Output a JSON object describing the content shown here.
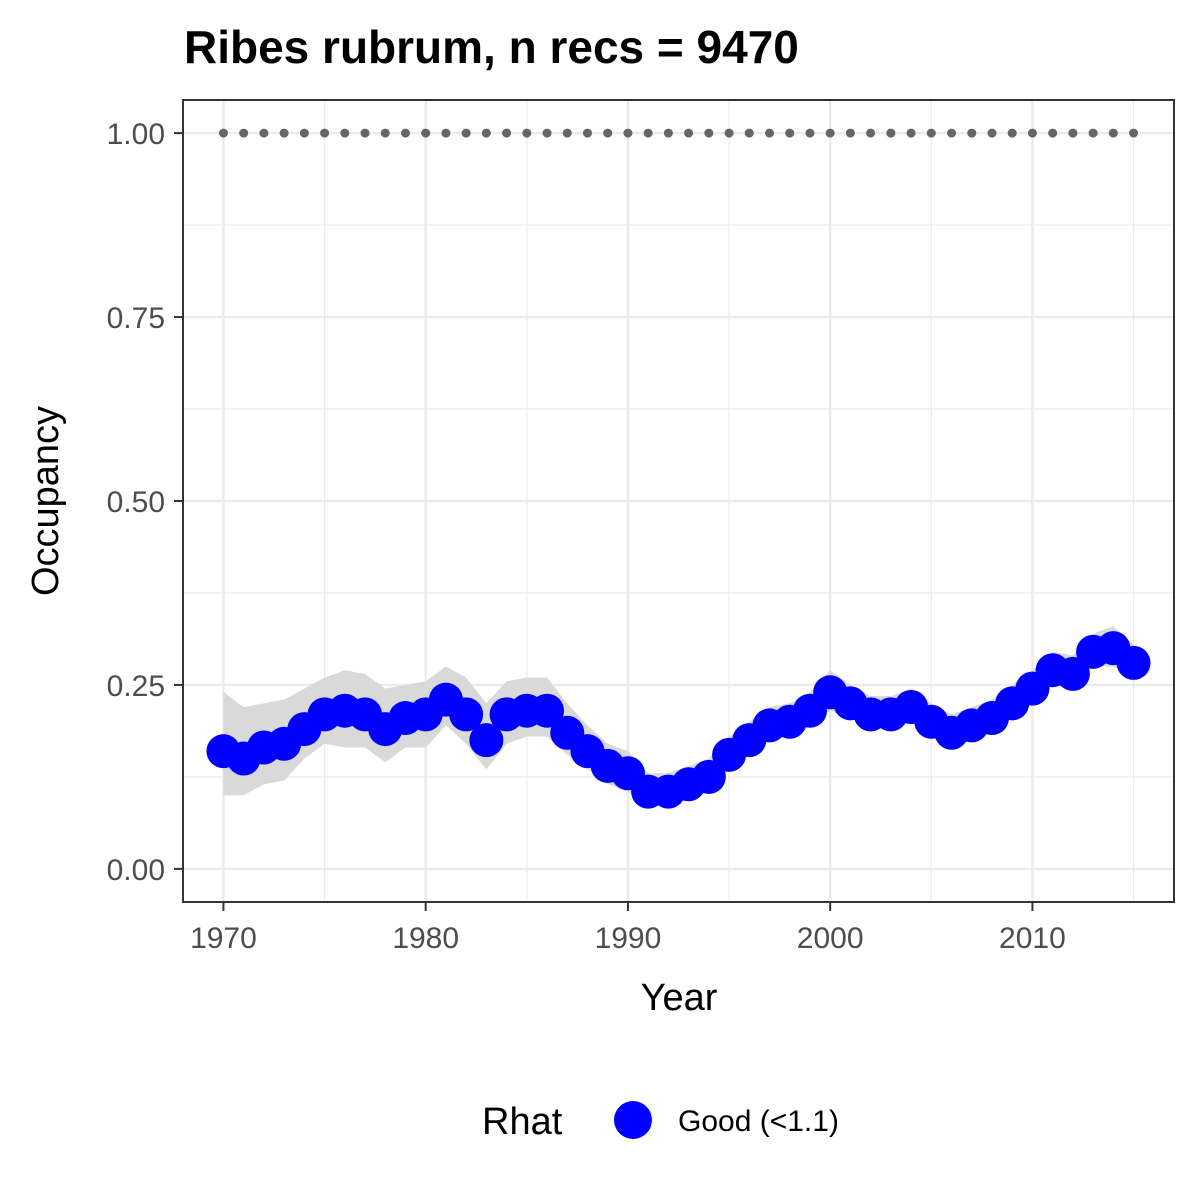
{
  "chart_data": {
    "type": "line",
    "title": "Ribes rubrum, n recs = 9470",
    "xlabel": "Year",
    "ylabel": "Occupancy",
    "xlim": [
      1968,
      2017
    ],
    "ylim": [
      -0.045,
      1.045
    ],
    "x_ticks": [
      1970,
      1980,
      1990,
      2000,
      2010
    ],
    "x_tick_labels": [
      "1970",
      "1980",
      "1990",
      "2000",
      "2010"
    ],
    "y_ticks": [
      0,
      0.25,
      0.5,
      0.75,
      1
    ],
    "y_tick_labels": [
      "0.00",
      "0.25",
      "0.50",
      "0.75",
      "1.00"
    ],
    "grid": true,
    "legend": {
      "title": "Rhat",
      "position": "bottom",
      "entries": [
        {
          "label": "Good (<1.1)",
          "color": "#0000ff"
        }
      ]
    },
    "colors": {
      "points": "#0000ff",
      "ribbon": "#d9d9d9",
      "reference_dots": "#666666",
      "panel_border": "#333333",
      "grid": "#ebebeb"
    },
    "x": [
      1970,
      1971,
      1972,
      1973,
      1974,
      1975,
      1976,
      1977,
      1978,
      1979,
      1980,
      1981,
      1982,
      1983,
      1984,
      1985,
      1986,
      1987,
      1988,
      1989,
      1990,
      1991,
      1992,
      1993,
      1994,
      1995,
      1996,
      1997,
      1998,
      1999,
      2000,
      2001,
      2002,
      2003,
      2004,
      2005,
      2006,
      2007,
      2008,
      2009,
      2010,
      2011,
      2012,
      2013,
      2014,
      2015
    ],
    "series": [
      {
        "values": [
          0.16,
          0.15,
          0.165,
          0.17,
          0.19,
          0.21,
          0.215,
          0.21,
          0.19,
          0.205,
          0.21,
          0.23,
          0.21,
          0.175,
          0.21,
          0.215,
          0.215,
          0.185,
          0.16,
          0.14,
          0.13,
          0.105,
          0.105,
          0.115,
          0.125,
          0.155,
          0.175,
          0.195,
          0.2,
          0.215,
          0.24,
          0.225,
          0.21,
          0.21,
          0.22,
          0.2,
          0.185,
          0.195,
          0.205,
          0.225,
          0.245,
          0.27,
          0.265,
          0.295,
          0.3,
          0.28
        ],
        "lower": [
          0.1,
          0.1,
          0.115,
          0.12,
          0.15,
          0.17,
          0.165,
          0.165,
          0.145,
          0.165,
          0.165,
          0.195,
          0.17,
          0.135,
          0.17,
          0.18,
          0.18,
          0.155,
          0.135,
          0.115,
          0.105,
          0.085,
          0.085,
          0.095,
          0.105,
          0.135,
          0.155,
          0.175,
          0.18,
          0.195,
          0.215,
          0.205,
          0.19,
          0.19,
          0.2,
          0.18,
          0.165,
          0.175,
          0.185,
          0.205,
          0.225,
          0.25,
          0.245,
          0.275,
          0.275,
          0.26
        ],
        "upper": [
          0.24,
          0.22,
          0.225,
          0.23,
          0.245,
          0.26,
          0.27,
          0.265,
          0.245,
          0.25,
          0.255,
          0.275,
          0.26,
          0.225,
          0.255,
          0.26,
          0.26,
          0.225,
          0.195,
          0.17,
          0.16,
          0.13,
          0.13,
          0.14,
          0.15,
          0.18,
          0.2,
          0.22,
          0.225,
          0.24,
          0.27,
          0.25,
          0.235,
          0.235,
          0.245,
          0.225,
          0.21,
          0.22,
          0.23,
          0.25,
          0.27,
          0.295,
          0.29,
          0.32,
          0.33,
          0.305
        ]
      }
    ],
    "reference": {
      "values_all": 1.0
    }
  }
}
